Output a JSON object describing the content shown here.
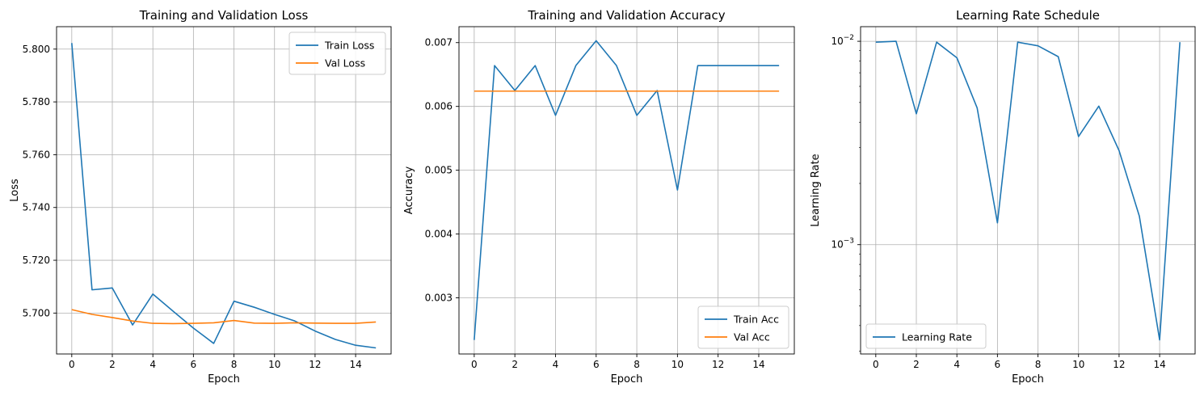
{
  "chart_data": [
    {
      "type": "line",
      "title": "Training and Validation Loss",
      "xlabel": "Epoch",
      "ylabel": "Loss",
      "xlim": [
        -0.75,
        15.75
      ],
      "ylim": [
        5.6845,
        5.8085
      ],
      "xticks": [
        0,
        2,
        4,
        6,
        8,
        10,
        12,
        14
      ],
      "yticks": [
        5.7,
        5.72,
        5.74,
        5.76,
        5.78,
        5.8
      ],
      "ytick_labels": [
        "5.700",
        "5.720",
        "5.740",
        "5.760",
        "5.780",
        "5.800"
      ],
      "yscale": "linear",
      "grid": true,
      "legend_loc": "top-right",
      "x": [
        0,
        1,
        2,
        3,
        4,
        5,
        6,
        7,
        8,
        9,
        10,
        11,
        12,
        13,
        14,
        15
      ],
      "series": [
        {
          "name": "Train Loss",
          "color": "#1f77b4",
          "values": [
            5.8023,
            5.7088,
            5.7095,
            5.6955,
            5.7072,
            5.7007,
            5.6943,
            5.6885,
            5.7045,
            5.7022,
            5.6995,
            5.697,
            5.6932,
            5.69,
            5.6878,
            5.6868
          ]
        },
        {
          "name": "Val Loss",
          "color": "#ff7f0e",
          "values": [
            5.7013,
            5.6995,
            5.6983,
            5.697,
            5.6961,
            5.696,
            5.6961,
            5.6963,
            5.6972,
            5.6962,
            5.6961,
            5.6963,
            5.6962,
            5.6961,
            5.6961,
            5.6966
          ]
        }
      ]
    },
    {
      "type": "line",
      "title": "Training and Validation Accuracy",
      "xlabel": "Epoch",
      "ylabel": "Accuracy",
      "xlim": [
        -0.75,
        15.75
      ],
      "ylim": [
        0.00212,
        0.00725
      ],
      "xticks": [
        0,
        2,
        4,
        6,
        8,
        10,
        12,
        14
      ],
      "yticks": [
        0.003,
        0.004,
        0.005,
        0.006,
        0.007
      ],
      "ytick_labels": [
        "0.003",
        "0.004",
        "0.005",
        "0.006",
        "0.007"
      ],
      "yscale": "linear",
      "grid": true,
      "legend_loc": "bottom-right",
      "x": [
        0,
        1,
        2,
        3,
        4,
        5,
        6,
        7,
        8,
        9,
        10,
        11,
        12,
        13,
        14,
        15
      ],
      "series": [
        {
          "name": "Train Acc",
          "color": "#1f77b4",
          "values": [
            0.00234,
            0.00664,
            0.00625,
            0.00664,
            0.00586,
            0.00664,
            0.00703,
            0.00664,
            0.00586,
            0.00625,
            0.00469,
            0.00664,
            0.00664,
            0.00664,
            0.00664,
            0.00664
          ]
        },
        {
          "name": "Val Acc",
          "color": "#ff7f0e",
          "values": [
            0.00624,
            0.00624,
            0.00624,
            0.00624,
            0.00624,
            0.00624,
            0.00624,
            0.00624,
            0.00624,
            0.00624,
            0.00624,
            0.00624,
            0.00624,
            0.00624,
            0.00624,
            0.00624
          ]
        }
      ]
    },
    {
      "type": "line",
      "title": "Learning Rate Schedule",
      "xlabel": "Epoch",
      "ylabel": "Learning Rate",
      "xlim": [
        -0.75,
        15.75
      ],
      "ylim": [
        0.00029,
        0.0118
      ],
      "xticks": [
        0,
        2,
        4,
        6,
        8,
        10,
        12,
        14
      ],
      "yticks": [
        0.001,
        0.01
      ],
      "ytick_labels": [
        "10^-3",
        "10^-2"
      ],
      "yscale": "log",
      "grid": true,
      "legend_loc": "bottom-left",
      "x": [
        0,
        1,
        2,
        3,
        4,
        5,
        6,
        7,
        8,
        9,
        10,
        11,
        12,
        13,
        14,
        15
      ],
      "series": [
        {
          "name": "Learning Rate",
          "color": "#1f77b4",
          "values": [
            0.0099,
            0.01,
            0.0044,
            0.0099,
            0.0083,
            0.0047,
            0.00128,
            0.0099,
            0.0095,
            0.0084,
            0.0034,
            0.0048,
            0.0029,
            0.00138,
            0.00034,
            0.0099
          ]
        }
      ]
    }
  ]
}
